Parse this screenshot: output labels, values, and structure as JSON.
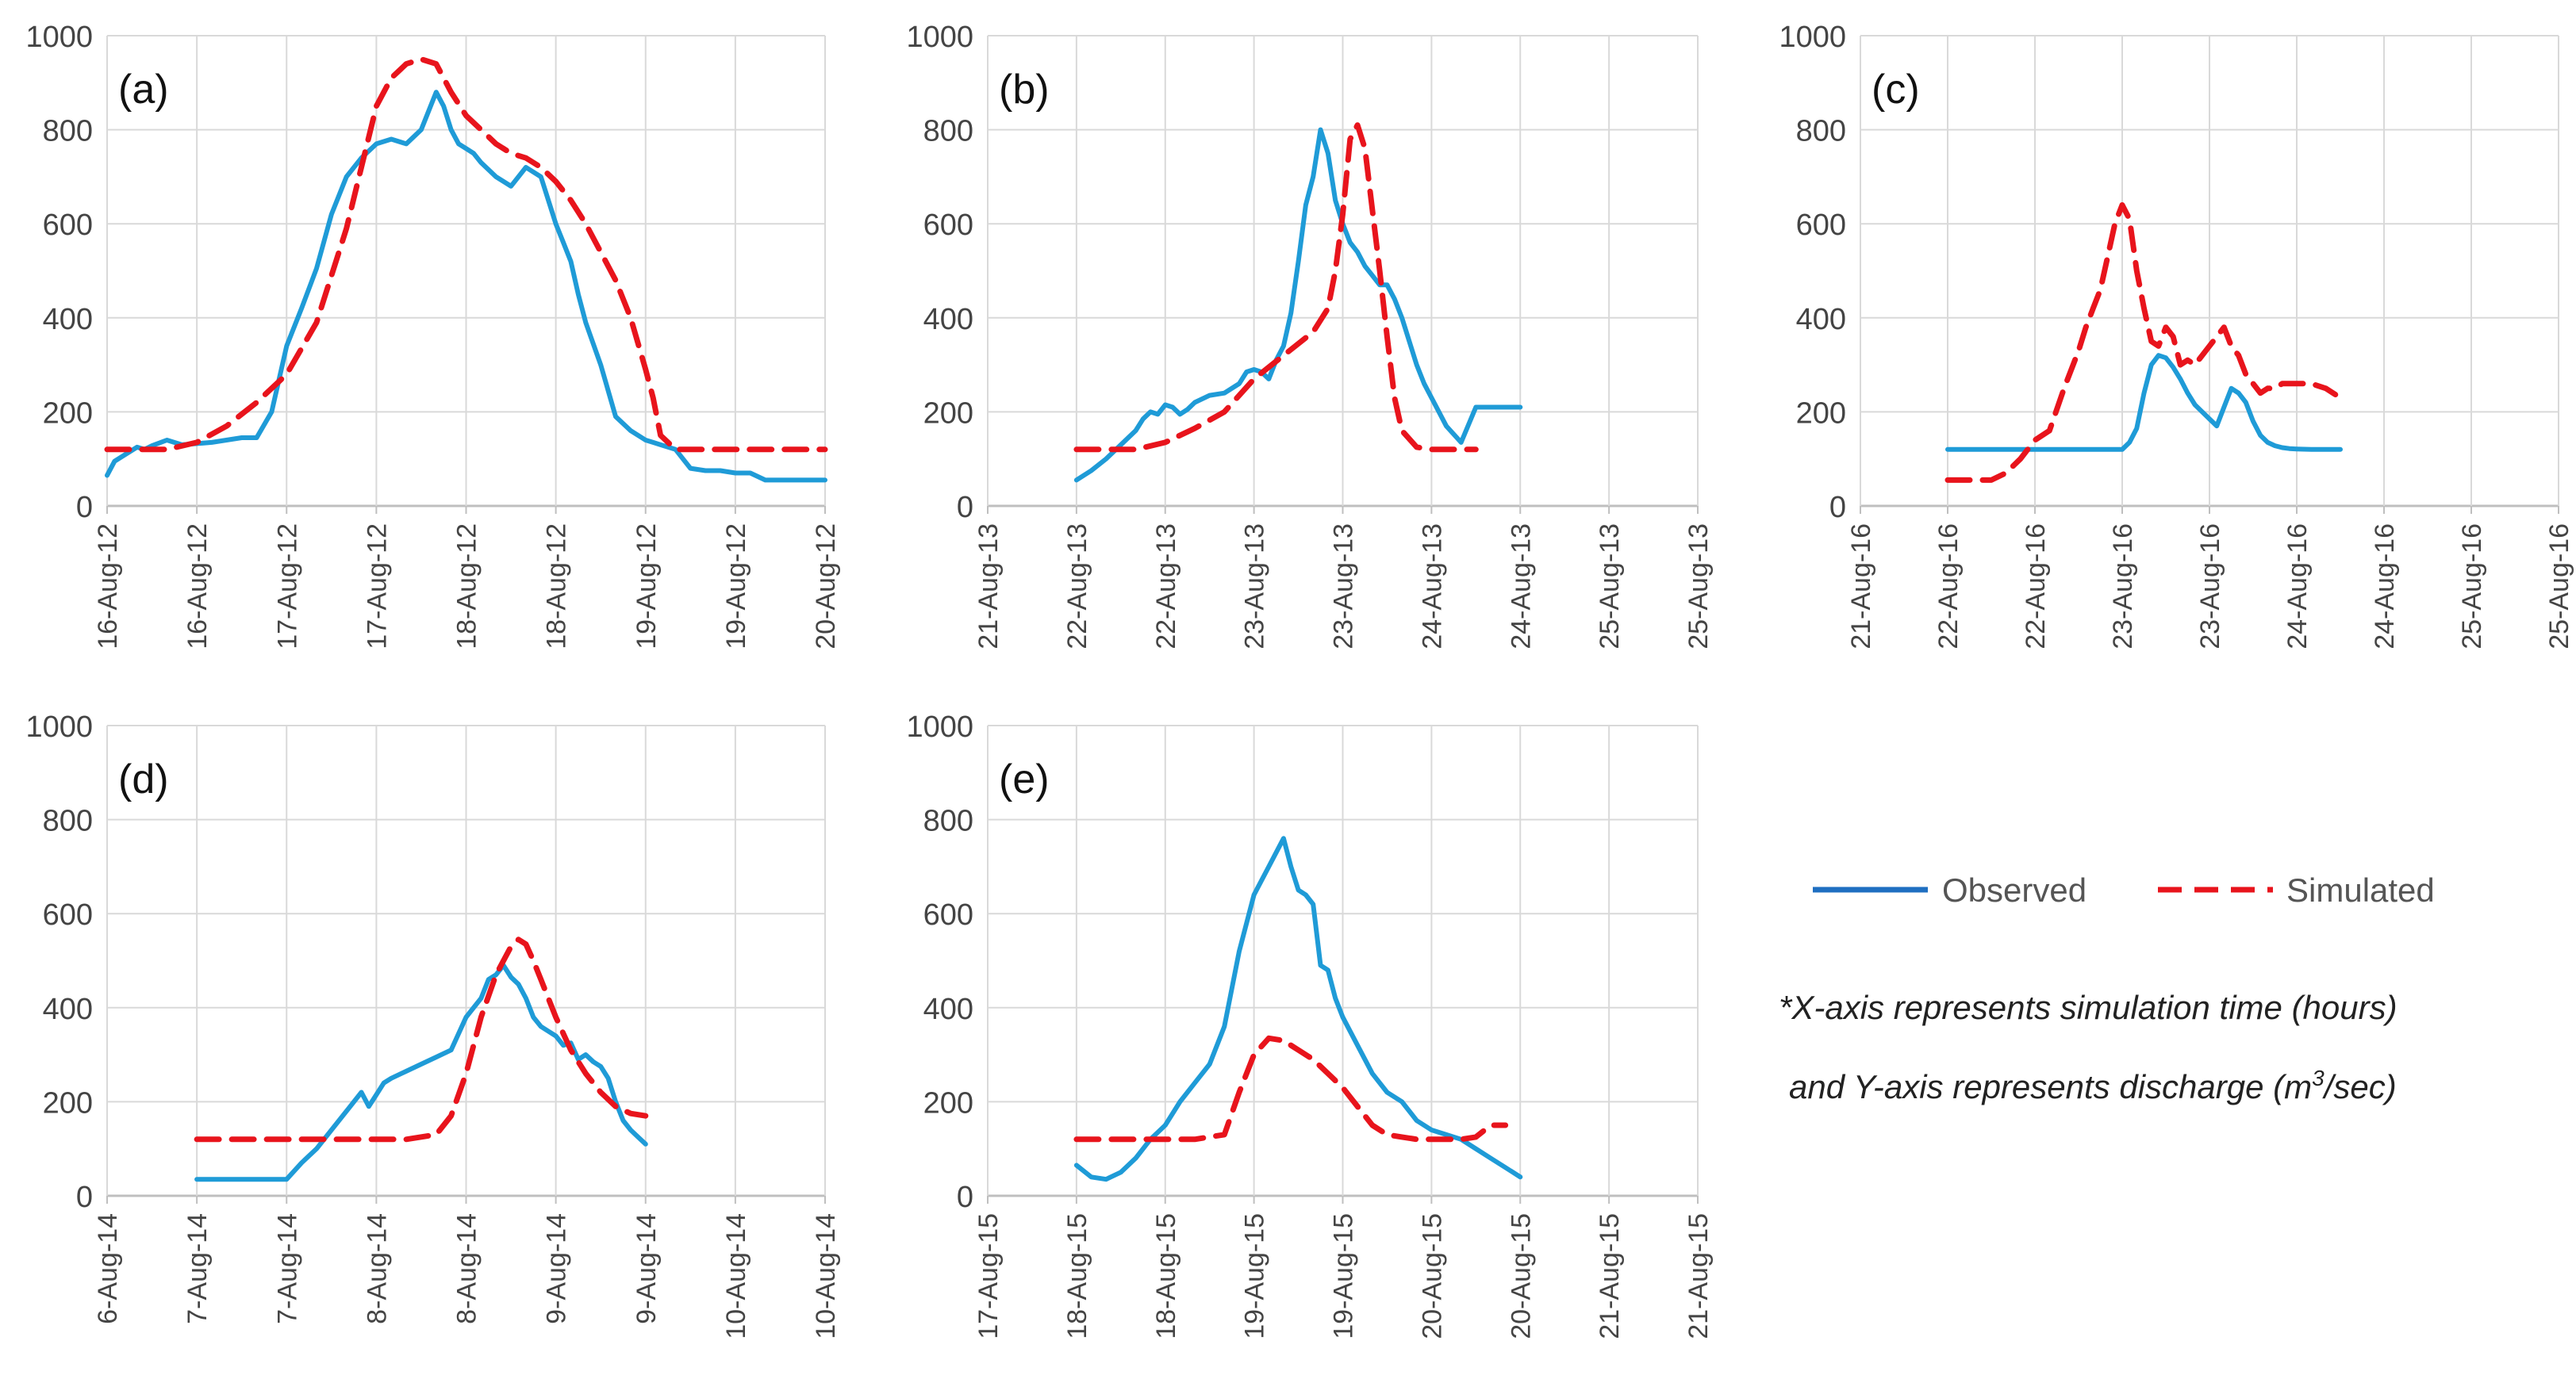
{
  "colors": {
    "observed": "#1f9bd7",
    "observed_legend": "#1f6fc1",
    "simulated": "#e8141c",
    "grid": "#d9d9d9",
    "axis": "#bfbfbf"
  },
  "legend": {
    "observed_label": "Observed",
    "simulated_label": "Simulated"
  },
  "note": {
    "line1": "*X-axis represents simulation time (hours)",
    "line2_prefix": "and Y-axis represents discharge (m",
    "line2_sup": "3",
    "line2_suffix": "/sec)"
  },
  "chart_data": [
    {
      "type": "line",
      "label": "(a)",
      "ylim": [
        0,
        1000
      ],
      "yticks": [
        0,
        200,
        400,
        600,
        800,
        1000
      ],
      "xlim": [
        0,
        96
      ],
      "xticks": [
        "16-Aug-12",
        "16-Aug-12",
        "17-Aug-12",
        "17-Aug-12",
        "18-Aug-12",
        "18-Aug-12",
        "19-Aug-12",
        "19-Aug-12",
        "20-Aug-12"
      ],
      "series": [
        {
          "name": "Observed",
          "x": [
            0,
            1,
            2,
            3,
            4,
            5,
            6,
            8,
            10,
            14,
            18,
            20,
            22,
            24,
            26,
            28,
            30,
            32,
            34,
            36,
            38,
            40,
            42,
            44,
            45,
            46,
            47,
            48,
            49,
            50,
            52,
            54,
            56,
            58,
            60,
            61,
            62,
            63,
            64,
            66,
            68,
            70,
            72,
            73,
            74,
            76,
            78,
            80,
            82,
            84,
            86,
            88,
            90,
            92,
            94,
            96
          ],
          "y": [
            65,
            95,
            105,
            115,
            125,
            120,
            128,
            140,
            130,
            135,
            145,
            145,
            200,
            340,
            420,
            505,
            620,
            700,
            740,
            770,
            780,
            770,
            800,
            880,
            850,
            800,
            770,
            760,
            750,
            730,
            700,
            680,
            720,
            700,
            600,
            560,
            520,
            450,
            390,
            300,
            190,
            160,
            140,
            135,
            130,
            120,
            80,
            75,
            75,
            70,
            70,
            55,
            55,
            55,
            55,
            55
          ]
        },
        {
          "name": "Simulated",
          "x": [
            0,
            4,
            8,
            12,
            16,
            20,
            24,
            28,
            32,
            34,
            36,
            38,
            40,
            42,
            44,
            46,
            48,
            50,
            52,
            54,
            56,
            58,
            60,
            62,
            64,
            66,
            68,
            70,
            72,
            73,
            74,
            76,
            78,
            80,
            84,
            88,
            92,
            96
          ],
          "y": [
            120,
            120,
            120,
            135,
            170,
            220,
            280,
            390,
            590,
            720,
            850,
            910,
            940,
            950,
            940,
            880,
            830,
            800,
            770,
            750,
            740,
            720,
            690,
            650,
            600,
            540,
            480,
            400,
            290,
            230,
            150,
            120,
            120,
            120,
            120,
            120,
            120,
            120
          ]
        }
      ]
    },
    {
      "type": "line",
      "label": "(b)",
      "ylim": [
        0,
        1000
      ],
      "yticks": [
        0,
        200,
        400,
        600,
        800,
        1000
      ],
      "xlim": [
        0,
        96
      ],
      "xticks": [
        "21-Aug-13",
        "22-Aug-13",
        "22-Aug-13",
        "23-Aug-13",
        "23-Aug-13",
        "24-Aug-13",
        "24-Aug-13",
        "25-Aug-13",
        "25-Aug-13"
      ],
      "series": [
        {
          "name": "Observed",
          "x": [
            12,
            14,
            16,
            18,
            20,
            21,
            22,
            23,
            24,
            25,
            26,
            27,
            28,
            30,
            32,
            34,
            35,
            36,
            37,
            38,
            39,
            40,
            41,
            42,
            43,
            44,
            45,
            46,
            47,
            48,
            49,
            50,
            51,
            52,
            53,
            54,
            55,
            56,
            57,
            58,
            59,
            60,
            61,
            62,
            64,
            66,
            68,
            70,
            72
          ],
          "y": [
            55,
            75,
            100,
            130,
            160,
            185,
            200,
            195,
            215,
            210,
            195,
            205,
            220,
            235,
            240,
            260,
            285,
            290,
            285,
            270,
            310,
            340,
            410,
            520,
            640,
            700,
            800,
            750,
            650,
            600,
            560,
            540,
            510,
            490,
            470,
            470,
            440,
            400,
            350,
            300,
            260,
            230,
            200,
            170,
            135,
            210,
            210,
            210,
            210
          ]
        },
        {
          "name": "Simulated",
          "x": [
            12,
            16,
            20,
            24,
            28,
            32,
            36,
            40,
            44,
            46,
            47,
            48,
            49,
            50,
            51,
            52,
            53,
            54,
            55,
            56,
            58,
            60,
            62,
            66
          ],
          "y": [
            120,
            120,
            120,
            135,
            165,
            200,
            270,
            320,
            370,
            420,
            500,
            620,
            780,
            810,
            760,
            630,
            500,
            360,
            230,
            160,
            125,
            120,
            120,
            120
          ]
        }
      ]
    },
    {
      "type": "line",
      "label": "(c)",
      "ylim": [
        0,
        1000
      ],
      "yticks": [
        0,
        200,
        400,
        600,
        800,
        1000
      ],
      "xlim": [
        0,
        96
      ],
      "xticks": [
        "21-Aug-16",
        "22-Aug-16",
        "22-Aug-16",
        "23-Aug-16",
        "23-Aug-16",
        "24-Aug-16",
        "24-Aug-16",
        "25-Aug-16",
        "25-Aug-16"
      ],
      "series": [
        {
          "name": "Observed",
          "x": [
            12,
            16,
            20,
            24,
            28,
            32,
            36,
            37,
            38,
            39,
            40,
            41,
            42,
            43,
            44,
            45,
            46,
            47,
            48,
            49,
            50,
            51,
            52,
            53,
            54,
            55,
            56,
            57,
            58,
            59,
            60,
            62,
            64,
            66
          ],
          "y": [
            120,
            120,
            120,
            120,
            120,
            120,
            120,
            135,
            165,
            240,
            300,
            320,
            315,
            295,
            270,
            240,
            215,
            200,
            185,
            170,
            210,
            250,
            240,
            220,
            180,
            150,
            135,
            128,
            124,
            122,
            121,
            120,
            120,
            120
          ]
        },
        {
          "name": "Simulated",
          "x": [
            12,
            16,
            18,
            20,
            22,
            24,
            26,
            28,
            30,
            31,
            32,
            33,
            34,
            35,
            36,
            37,
            38,
            39,
            40,
            41,
            42,
            43,
            44,
            45,
            46,
            47,
            48,
            49,
            50,
            51,
            52,
            53,
            54,
            55,
            56,
            57,
            58,
            59,
            60,
            61,
            62,
            63,
            64,
            65,
            66
          ],
          "y": [
            55,
            55,
            55,
            70,
            100,
            140,
            160,
            250,
            330,
            380,
            420,
            460,
            530,
            600,
            640,
            610,
            500,
            420,
            350,
            340,
            380,
            360,
            300,
            310,
            300,
            320,
            340,
            360,
            380,
            340,
            320,
            280,
            260,
            240,
            250,
            250,
            260,
            260,
            260,
            260,
            260,
            255,
            250,
            240,
            230
          ]
        }
      ]
    },
    {
      "type": "line",
      "label": "(d)",
      "ylim": [
        0,
        1000
      ],
      "yticks": [
        0,
        200,
        400,
        600,
        800,
        1000
      ],
      "xlim": [
        0,
        96
      ],
      "xticks": [
        "6-Aug-14",
        "7-Aug-14",
        "7-Aug-14",
        "8-Aug-14",
        "8-Aug-14",
        "9-Aug-14",
        "9-Aug-14",
        "10-Aug-14",
        "10-Aug-14"
      ],
      "series": [
        {
          "name": "Observed",
          "x": [
            12,
            16,
            20,
            24,
            26,
            28,
            30,
            32,
            34,
            35,
            36,
            37,
            38,
            40,
            42,
            44,
            46,
            48,
            50,
            51,
            52,
            53,
            54,
            55,
            56,
            57,
            58,
            59,
            60,
            61,
            62,
            63,
            64,
            65,
            66,
            67,
            68,
            69,
            70,
            71,
            72
          ],
          "y": [
            35,
            35,
            35,
            35,
            70,
            100,
            140,
            180,
            220,
            190,
            215,
            240,
            250,
            265,
            280,
            295,
            310,
            380,
            420,
            460,
            470,
            490,
            465,
            450,
            420,
            380,
            360,
            350,
            340,
            320,
            325,
            290,
            300,
            285,
            275,
            250,
            200,
            160,
            140,
            125,
            110
          ]
        },
        {
          "name": "Simulated",
          "x": [
            12,
            16,
            20,
            24,
            28,
            32,
            36,
            40,
            44,
            46,
            48,
            50,
            52,
            54,
            55,
            56,
            57,
            58,
            60,
            62,
            64,
            66,
            68,
            70,
            72
          ],
          "y": [
            120,
            120,
            120,
            120,
            120,
            120,
            120,
            120,
            130,
            170,
            260,
            380,
            470,
            530,
            545,
            535,
            500,
            460,
            380,
            310,
            260,
            220,
            190,
            175,
            170
          ]
        }
      ]
    },
    {
      "type": "line",
      "label": "(e)",
      "ylim": [
        0,
        1000
      ],
      "yticks": [
        0,
        200,
        400,
        600,
        800,
        1000
      ],
      "xlim": [
        0,
        96
      ],
      "xticks": [
        "17-Aug-15",
        "18-Aug-15",
        "18-Aug-15",
        "19-Aug-15",
        "19-Aug-15",
        "20-Aug-15",
        "20-Aug-15",
        "21-Aug-15",
        "21-Aug-15"
      ],
      "series": [
        {
          "name": "Observed",
          "x": [
            12,
            14,
            16,
            18,
            20,
            22,
            24,
            26,
            28,
            30,
            32,
            34,
            36,
            38,
            40,
            41,
            42,
            43,
            44,
            45,
            46,
            47,
            48,
            50,
            52,
            54,
            56,
            58,
            60,
            62,
            64,
            66,
            68,
            70,
            72
          ],
          "y": [
            65,
            40,
            35,
            50,
            80,
            120,
            150,
            200,
            240,
            280,
            360,
            520,
            640,
            700,
            760,
            700,
            650,
            640,
            620,
            490,
            480,
            420,
            380,
            320,
            260,
            220,
            200,
            160,
            140,
            130,
            120,
            100,
            80,
            60,
            40
          ]
        },
        {
          "name": "Simulated",
          "x": [
            12,
            16,
            20,
            24,
            28,
            32,
            34,
            36,
            38,
            40,
            42,
            44,
            46,
            48,
            50,
            52,
            54,
            56,
            58,
            60,
            62,
            64,
            66,
            68,
            70
          ],
          "y": [
            120,
            120,
            120,
            120,
            120,
            130,
            220,
            300,
            335,
            330,
            310,
            290,
            260,
            230,
            190,
            150,
            130,
            125,
            120,
            120,
            120,
            120,
            125,
            150,
            150
          ]
        }
      ]
    }
  ]
}
